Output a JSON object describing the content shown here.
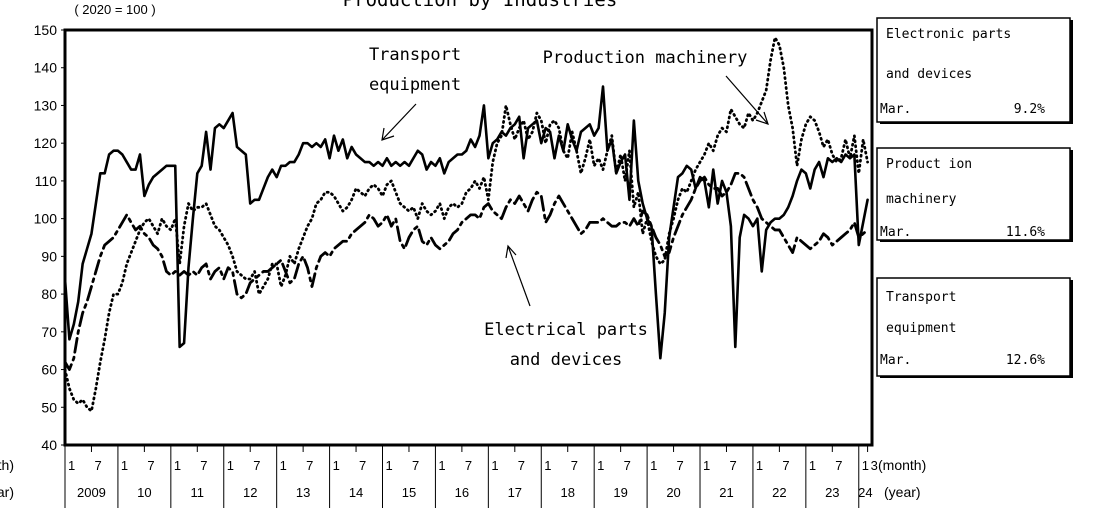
{
  "chart_data": {
    "type": "line",
    "title": "Production by Industries",
    "unit_label": "( 2020 = 100 )",
    "month_label": "(month)",
    "year_label": "(year)",
    "ylim": [
      40,
      150
    ],
    "yticks": [
      40,
      50,
      60,
      70,
      80,
      90,
      100,
      110,
      120,
      130,
      140,
      150
    ],
    "x": [
      "2009-01",
      "2009-02",
      "2009-03",
      "2009-04",
      "2009-05",
      "2009-06",
      "2009-07",
      "2009-08",
      "2009-09",
      "2009-10",
      "2009-11",
      "2009-12",
      "2010-01",
      "2010-02",
      "2010-03",
      "2010-04",
      "2010-05",
      "2010-06",
      "2010-07",
      "2010-08",
      "2010-09",
      "2010-10",
      "2010-11",
      "2010-12",
      "2011-01",
      "2011-02",
      "2011-03",
      "2011-04",
      "2011-05",
      "2011-06",
      "2011-07",
      "2011-08",
      "2011-09",
      "2011-10",
      "2011-11",
      "2011-12",
      "2012-01",
      "2012-02",
      "2012-03",
      "2012-04",
      "2012-05",
      "2012-06",
      "2012-07",
      "2012-08",
      "2012-09",
      "2012-10",
      "2012-11",
      "2012-12",
      "2013-01",
      "2013-02",
      "2013-03",
      "2013-04",
      "2013-05",
      "2013-06",
      "2013-07",
      "2013-08",
      "2013-09",
      "2013-10",
      "2013-11",
      "2013-12",
      "2014-01",
      "2014-02",
      "2014-03",
      "2014-04",
      "2014-05",
      "2014-06",
      "2014-07",
      "2014-08",
      "2014-09",
      "2014-10",
      "2014-11",
      "2014-12",
      "2015-01",
      "2015-02",
      "2015-03",
      "2015-04",
      "2015-05",
      "2015-06",
      "2015-07",
      "2015-08",
      "2015-09",
      "2015-10",
      "2015-11",
      "2015-12",
      "2016-01",
      "2016-02",
      "2016-03",
      "2016-04",
      "2016-05",
      "2016-06",
      "2016-07",
      "2016-08",
      "2016-09",
      "2016-10",
      "2016-11",
      "2016-12",
      "2017-01",
      "2017-02",
      "2017-03",
      "2017-04",
      "2017-05",
      "2017-06",
      "2017-07",
      "2017-08",
      "2017-09",
      "2017-10",
      "2017-11",
      "2017-12",
      "2018-01",
      "2018-02",
      "2018-03",
      "2018-04",
      "2018-05",
      "2018-06",
      "2018-07",
      "2018-08",
      "2018-09",
      "2018-10",
      "2018-11",
      "2018-12",
      "2019-01",
      "2019-02",
      "2019-03",
      "2019-04",
      "2019-05",
      "2019-06",
      "2019-07",
      "2019-08",
      "2019-09",
      "2019-10",
      "2019-11",
      "2019-12",
      "2020-01",
      "2020-02",
      "2020-03",
      "2020-04",
      "2020-05",
      "2020-06",
      "2020-07",
      "2020-08",
      "2020-09",
      "2020-10",
      "2020-11",
      "2020-12",
      "2021-01",
      "2021-02",
      "2021-03",
      "2021-04",
      "2021-05",
      "2021-06",
      "2021-07",
      "2021-08",
      "2021-09",
      "2021-10",
      "2021-11",
      "2021-12",
      "2022-01",
      "2022-02",
      "2022-03",
      "2022-04",
      "2022-05",
      "2022-06",
      "2022-07",
      "2022-08",
      "2022-09",
      "2022-10",
      "2022-11",
      "2022-12",
      "2023-01",
      "2023-02",
      "2023-03",
      "2023-04",
      "2023-05",
      "2023-06",
      "2023-07",
      "2023-08",
      "2023-09",
      "2023-10",
      "2023-11",
      "2023-12",
      "2024-01",
      "2024-02",
      "2024-03"
    ],
    "xticks": [
      {
        "value": "2009-01",
        "label": "1"
      },
      {
        "value": "2009-07",
        "label": "7"
      },
      {
        "value": "2010-01",
        "label": "1"
      },
      {
        "value": "2010-07",
        "label": "7"
      },
      {
        "value": "2011-01",
        "label": "1"
      },
      {
        "value": "2011-07",
        "label": "7"
      },
      {
        "value": "2012-01",
        "label": "1"
      },
      {
        "value": "2012-07",
        "label": "7"
      },
      {
        "value": "2013-01",
        "label": "1"
      },
      {
        "value": "2013-07",
        "label": "7"
      },
      {
        "value": "2014-01",
        "label": "1"
      },
      {
        "value": "2014-07",
        "label": "7"
      },
      {
        "value": "2015-01",
        "label": "1"
      },
      {
        "value": "2015-07",
        "label": "7"
      },
      {
        "value": "2016-01",
        "label": "1"
      },
      {
        "value": "2016-07",
        "label": "7"
      },
      {
        "value": "2017-01",
        "label": "1"
      },
      {
        "value": "2017-07",
        "label": "7"
      },
      {
        "value": "2018-01",
        "label": "1"
      },
      {
        "value": "2018-07",
        "label": "7"
      },
      {
        "value": "2019-01",
        "label": "1"
      },
      {
        "value": "2019-07",
        "label": "7"
      },
      {
        "value": "2020-01",
        "label": "1"
      },
      {
        "value": "2020-07",
        "label": "7"
      },
      {
        "value": "2021-01",
        "label": "1"
      },
      {
        "value": "2021-07",
        "label": "7"
      },
      {
        "value": "2022-01",
        "label": "1"
      },
      {
        "value": "2022-07",
        "label": "7"
      },
      {
        "value": "2023-01",
        "label": "1"
      },
      {
        "value": "2023-07",
        "label": "7"
      },
      {
        "value": "2024-01",
        "label": "1"
      },
      {
        "value": "2024-03",
        "label": "3"
      }
    ],
    "year_labels": [
      {
        "value": "2009",
        "label": "2009"
      },
      {
        "value": "2010",
        "label": "10"
      },
      {
        "value": "2011",
        "label": "11"
      },
      {
        "value": "2012",
        "label": "12"
      },
      {
        "value": "2013",
        "label": "13"
      },
      {
        "value": "2014",
        "label": "14"
      },
      {
        "value": "2015",
        "label": "15"
      },
      {
        "value": "2016",
        "label": "16"
      },
      {
        "value": "2017",
        "label": "17"
      },
      {
        "value": "2018",
        "label": "18"
      },
      {
        "value": "2019",
        "label": "19"
      },
      {
        "value": "2020",
        "label": "20"
      },
      {
        "value": "2021",
        "label": "21"
      },
      {
        "value": "2022",
        "label": "22"
      },
      {
        "value": "2023",
        "label": "23"
      },
      {
        "value": "2024",
        "label": "24"
      }
    ],
    "series": [
      {
        "label_lines": [
          "Transport",
          "equipment"
        ],
        "color": "#000000",
        "style": "solid",
        "values": [
          84,
          68,
          72,
          78,
          88,
          92,
          96,
          104,
          112,
          112,
          117,
          118,
          118,
          117,
          115,
          113,
          113,
          117,
          106,
          109,
          111,
          112,
          113,
          114,
          114,
          114,
          66,
          67,
          87,
          100,
          112,
          114,
          123,
          113,
          124,
          125,
          124,
          126,
          128,
          119,
          118,
          117,
          104,
          105,
          105,
          108,
          111,
          113,
          111,
          114,
          114,
          115,
          115,
          117,
          120,
          120,
          119,
          120,
          119,
          121,
          116,
          122,
          118,
          121,
          116,
          119,
          117,
          116,
          115,
          115,
          114,
          115,
          114,
          116,
          114,
          115,
          114,
          115,
          114,
          116,
          118,
          117,
          113,
          115,
          114,
          116,
          112,
          115,
          116,
          117,
          117,
          118,
          121,
          119,
          122,
          130,
          116,
          120,
          121,
          123,
          122,
          124,
          125,
          127,
          116,
          124,
          125,
          126,
          120,
          124,
          123,
          116,
          122,
          118,
          125,
          121,
          118,
          123,
          124,
          125,
          122,
          124,
          135,
          118,
          121,
          112,
          115,
          117,
          105,
          126,
          110,
          104,
          100,
          98,
          80,
          63,
          75,
          95,
          103,
          111,
          112,
          114,
          113,
          108,
          111,
          110,
          103,
          113,
          104,
          110,
          107,
          98,
          66,
          95,
          101,
          100,
          98,
          100,
          86,
          97,
          99,
          100,
          100,
          101,
          103,
          106,
          110,
          113,
          112,
          108,
          113,
          115,
          111,
          116,
          115,
          116,
          115,
          117,
          116,
          117,
          93,
          99,
          105
        ]
      },
      {
        "label_lines": [
          "Production machinery"
        ],
        "color": "#000000",
        "style": "dotted",
        "values": [
          60,
          55,
          52,
          51,
          52,
          50,
          49,
          55,
          62,
          68,
          75,
          80,
          80,
          83,
          88,
          91,
          94,
          97,
          99,
          100,
          98,
          96,
          100,
          98,
          97,
          100,
          88,
          98,
          104,
          102,
          103,
          103,
          104,
          101,
          98,
          97,
          95,
          93,
          90,
          86,
          85,
          84,
          84,
          86,
          80,
          82,
          84,
          88,
          88,
          82,
          85,
          90,
          88,
          92,
          95,
          98,
          100,
          104,
          105,
          107,
          107,
          106,
          104,
          102,
          103,
          105,
          108,
          107,
          106,
          108,
          109,
          108,
          106,
          109,
          110,
          107,
          104,
          103,
          102,
          103,
          100,
          104,
          102,
          101,
          102,
          104,
          100,
          103,
          104,
          103,
          104,
          107,
          108,
          110,
          108,
          111,
          105,
          115,
          120,
          122,
          130,
          125,
          121,
          124,
          126,
          121,
          123,
          128,
          126,
          120,
          125,
          126,
          124,
          118,
          116,
          123,
          118,
          112,
          116,
          121,
          114,
          116,
          113,
          118,
          122,
          112,
          117,
          110,
          118,
          103,
          107,
          96,
          100,
          94,
          90,
          88,
          89,
          96,
          100,
          105,
          108,
          107,
          110,
          113,
          115,
          117,
          120,
          118,
          122,
          124,
          123,
          129,
          127,
          125,
          124,
          128,
          126,
          128,
          131,
          134,
          142,
          148,
          146,
          140,
          130,
          124,
          114,
          121,
          125,
          127,
          126,
          123,
          119,
          121,
          117,
          115,
          116,
          121,
          116,
          122,
          112,
          121,
          115
        ]
      },
      {
        "label_lines": [
          "Electrical parts",
          "and devices"
        ],
        "color": "#000000",
        "style": "dashdot",
        "values": [
          62,
          60,
          63,
          70,
          75,
          78,
          82,
          86,
          90,
          93,
          94,
          95,
          97,
          99,
          101,
          99,
          97,
          98,
          96,
          95,
          93,
          92,
          90,
          86,
          85,
          86,
          85,
          86,
          85,
          86,
          85,
          87,
          88,
          84,
          86,
          87,
          84,
          87,
          86,
          80,
          79,
          80,
          83,
          84,
          85,
          86,
          86,
          87,
          88,
          89,
          86,
          83,
          84,
          88,
          90,
          87,
          82,
          87,
          90,
          91,
          90,
          92,
          93,
          94,
          94,
          96,
          97,
          98,
          99,
          101,
          100,
          98,
          99,
          101,
          98,
          100,
          94,
          92,
          95,
          97,
          98,
          94,
          93,
          95,
          93,
          92,
          93,
          94,
          96,
          97,
          99,
          100,
          101,
          101,
          100,
          103,
          104,
          102,
          101,
          100,
          103,
          105,
          104,
          106,
          104,
          102,
          105,
          107,
          106,
          99,
          101,
          104,
          106,
          104,
          102,
          100,
          98,
          96,
          97,
          99,
          99,
          99,
          100,
          99,
          98,
          98,
          99,
          99,
          98,
          100,
          98,
          102,
          101,
          98,
          95,
          93,
          90,
          91,
          95,
          98,
          101,
          103,
          105,
          108,
          110,
          111,
          109,
          108,
          108,
          106,
          107,
          109,
          112,
          112,
          111,
          108,
          105,
          103,
          100,
          99,
          98,
          97,
          97,
          95,
          93,
          91,
          95,
          94,
          93,
          92,
          93,
          94,
          96,
          95,
          93,
          94,
          95,
          96,
          97,
          99,
          95,
          96,
          97
        ]
      }
    ],
    "info_boxes": [
      {
        "title_lines": [
          "Electronic parts",
          "and devices"
        ],
        "month": "Mar.",
        "change": "9.2%"
      },
      {
        "title_lines": [
          "Product ion",
          "machinery"
        ],
        "month": "Mar.",
        "change": "11.6%"
      },
      {
        "title_lines": [
          "Transport",
          "equipment"
        ],
        "month": "Mar.",
        "change": "12.6%"
      }
    ]
  }
}
